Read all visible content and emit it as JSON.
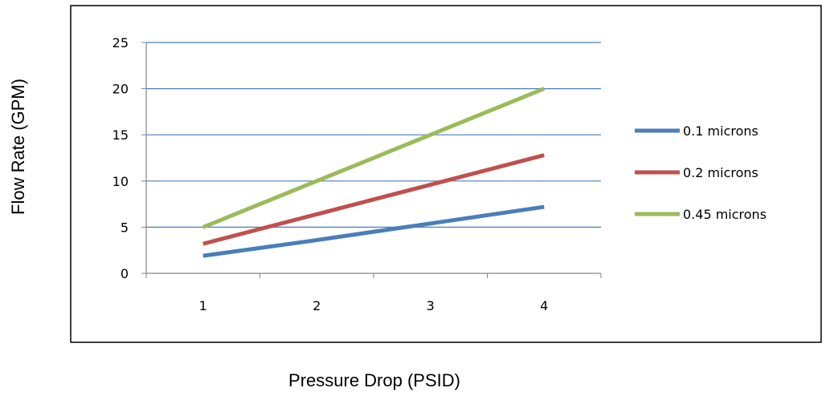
{
  "chart_data": {
    "type": "line",
    "title": "",
    "xlabel": "Pressure Drop (PSID)",
    "ylabel": "Flow Rate  (GPM)",
    "categories": [
      "1",
      "2",
      "3",
      "4"
    ],
    "ylim": [
      0,
      25
    ],
    "yticks": [
      "0",
      "5",
      "10",
      "15",
      "20",
      "25"
    ],
    "grid": true,
    "legend": "right",
    "series": [
      {
        "name": "0.1 microns",
        "values": [
          1.9,
          3.6,
          5.4,
          7.2
        ],
        "color": "#4a7ebb"
      },
      {
        "name": "0.2 microns",
        "values": [
          3.2,
          6.4,
          9.6,
          12.8
        ],
        "color": "#c0504d"
      },
      {
        "name": "0.45 microns",
        "values": [
          5.0,
          10.0,
          15.0,
          20.0
        ],
        "color": "#9bbb59"
      }
    ]
  }
}
